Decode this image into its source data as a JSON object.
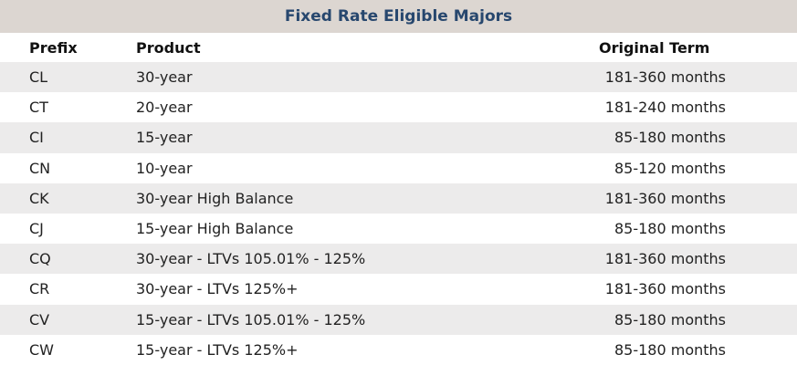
{
  "table": {
    "title": "Fixed Rate Eligible Majors",
    "headers": {
      "prefix": "Prefix",
      "product": "Product",
      "term": "Original Term"
    },
    "rows": [
      {
        "prefix": "CL",
        "product": "30-year",
        "term": "181-360 months"
      },
      {
        "prefix": "CT",
        "product": "20-year",
        "term": "181-240 months"
      },
      {
        "prefix": "CI",
        "product": "15-year",
        "term": "85-180 months"
      },
      {
        "prefix": "CN",
        "product": "10-year",
        "term": "85-120 months"
      },
      {
        "prefix": "CK",
        "product": "30-year High Balance",
        "term": "181-360 months"
      },
      {
        "prefix": "CJ",
        "product": "15-year High Balance",
        "term": "85-180 months"
      },
      {
        "prefix": "CQ",
        "product": "30-year - LTVs 105.01% - 125%",
        "term": "181-360 months"
      },
      {
        "prefix": "CR",
        "product": "30-year - LTVs 125%+",
        "term": "181-360 months"
      },
      {
        "prefix": "CV",
        "product": "15-year - LTVs 105.01% - 125%",
        "term": "85-180 months"
      },
      {
        "prefix": "CW",
        "product": "15-year - LTVs 125%+",
        "term": "85-180 months"
      }
    ]
  },
  "colors": {
    "title_bar": "#dcd6d1",
    "title_text": "#27476e",
    "row_shade": "#ecebeb"
  }
}
